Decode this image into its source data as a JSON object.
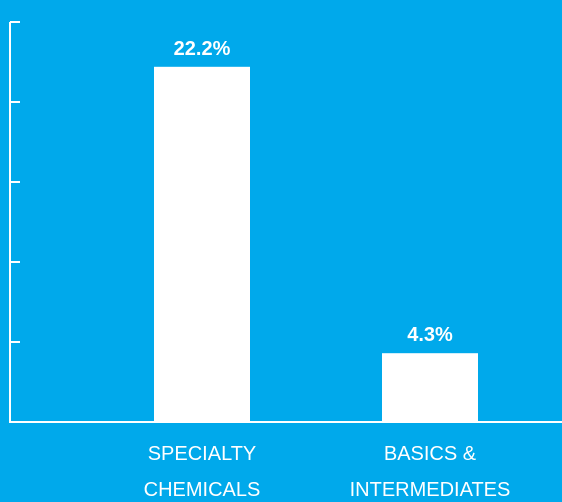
{
  "colors": {
    "background": "#00a9eb",
    "bar": "#ffffff",
    "axis": "#ffffff",
    "text": "#ffffff"
  },
  "chart_data": {
    "type": "bar",
    "title": "",
    "xlabel": "",
    "ylabel": "",
    "categories": [
      [
        "SPECIALTY",
        "CHEMICALS"
      ],
      [
        "BASICS &",
        "INTERMEDIATES"
      ]
    ],
    "values": [
      22.2,
      4.3
    ],
    "value_labels": [
      "22.2%",
      "4.3%"
    ],
    "ylim": [
      0,
      25
    ],
    "yticks": [
      0,
      5,
      10,
      15,
      20,
      25
    ],
    "show_tick_labels": false,
    "grid": false,
    "legend": "none"
  }
}
